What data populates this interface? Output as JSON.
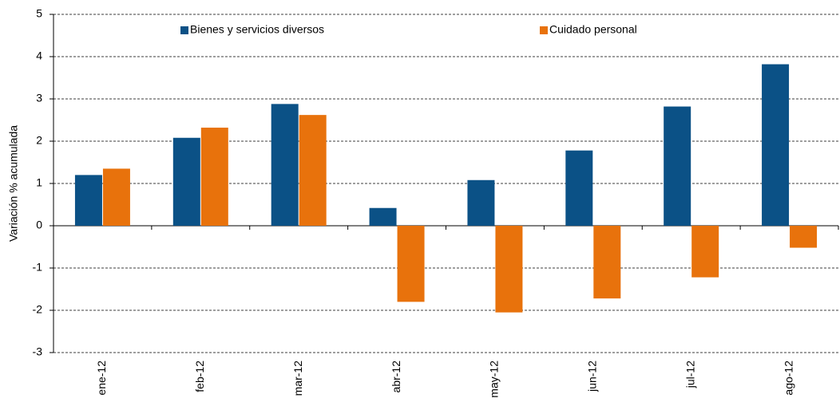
{
  "chart_data": {
    "type": "bar",
    "y_label": "Variación % acumulada",
    "categories": [
      "ene-12",
      "feb-12",
      "mar-12",
      "abr-12",
      "may-12",
      "jun-12",
      "jul-12",
      "ago-12"
    ],
    "series": [
      {
        "name": "Bienes y servicios diversos",
        "color": "#0b5186",
        "values": [
          1.2,
          2.08,
          2.88,
          0.42,
          1.08,
          1.78,
          2.82,
          3.82
        ]
      },
      {
        "name": "Cuidado personal",
        "color": "#e8720c",
        "values": [
          1.35,
          2.32,
          2.62,
          -1.8,
          -2.05,
          -1.72,
          -1.22,
          -0.52
        ]
      }
    ],
    "ylim": [
      -3,
      5
    ],
    "yticks": [
      -3,
      -2,
      -1,
      0,
      1,
      2,
      3,
      4,
      5
    ],
    "grid": true,
    "legend": "top"
  }
}
